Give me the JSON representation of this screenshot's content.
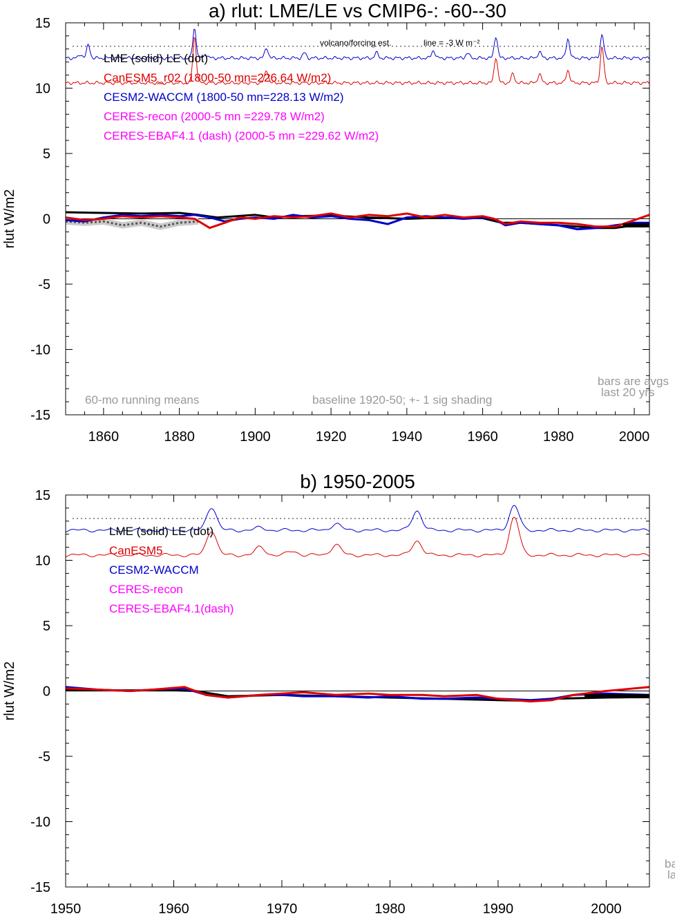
{
  "chart_data": [
    {
      "type": "line",
      "title": "a) rlut: LME/LE vs CMIP6-: -60--30",
      "ylabel": "rlut W/m2",
      "xlim": [
        1850,
        2004
      ],
      "ylim": [
        -15,
        15
      ],
      "xticks": [
        1860,
        1880,
        1900,
        1920,
        1940,
        1960,
        1980,
        2000
      ],
      "yticks": [
        15,
        10,
        5,
        0,
        -5,
        -10,
        -15
      ],
      "legend": [
        {
          "text": "LME (solid)   LE (dot)",
          "color": "#000000"
        },
        {
          "text": "CanESM5_r02 (1800-50 mn=226.64 W/m2)",
          "color": "#dd0000"
        },
        {
          "text": "CESM2-WACCM (1800-50 mn=228.13 W/m2)",
          "color": "#0000cc"
        },
        {
          "text": "CERES-recon (2000-5 mn =229.78 W/m2)",
          "color": "#ff00ff"
        },
        {
          "text": "CERES-EBAF4.1 (dash) (2000-5 mn =229.62 W/m2)",
          "color": "#ff00ff"
        }
      ],
      "annotations": {
        "volcano": "volcano/forcing est.",
        "line_ref": "line = -3 W m⁻²",
        "running": "60-mo running means",
        "baseline": "baseline 1920-50; +- 1 sig shading",
        "bars1": "bars are avgs",
        "bars2": "last 20 yrs"
      },
      "dotted_ref_y": 13.2,
      "forcing_series": [
        {
          "name": "CESM2-WACCM forcing",
          "color": "#0000cc",
          "base": 12.3,
          "peaks": [
            [
              1854,
              0.3
            ],
            [
              1856,
              1.0
            ],
            [
              1884,
              2.3
            ],
            [
              1887,
              0.3
            ],
            [
              1903,
              0.8
            ],
            [
              1913,
              0.4
            ],
            [
              1932,
              0.4
            ],
            [
              1947,
              0.6
            ],
            [
              1956,
              0.4
            ],
            [
              1963.5,
              1.7
            ],
            [
              1975,
              0.5
            ],
            [
              1982.5,
              1.5
            ],
            [
              1991.5,
              1.8
            ]
          ]
        },
        {
          "name": "CanESM5 forcing",
          "color": "#dd0000",
          "base": 10.4,
          "peaks": [
            [
              1884,
              3.6
            ],
            [
              1903,
              1.0
            ],
            [
              1963.5,
              2.0
            ],
            [
              1968,
              0.7
            ],
            [
              1975,
              0.7
            ],
            [
              1982.5,
              1.0
            ],
            [
              1991.5,
              2.8
            ]
          ]
        }
      ],
      "anomaly_series": [
        {
          "name": "LME",
          "color": "#000000",
          "x": [
            1850,
            1860,
            1870,
            1880,
            1885,
            1890,
            1895,
            1900,
            1905,
            1910,
            1920,
            1930,
            1940,
            1950,
            1960,
            1965,
            1970,
            1975,
            1980,
            1985,
            1990,
            1995,
            2000,
            2004
          ],
          "y": [
            0.5,
            0.45,
            0.4,
            0.45,
            0.3,
            0.1,
            0.2,
            0.3,
            0.1,
            0.2,
            0.25,
            0.1,
            0.0,
            0.1,
            0.05,
            -0.3,
            -0.3,
            -0.4,
            -0.5,
            -0.6,
            -0.7,
            -0.7,
            -0.5,
            -0.4
          ]
        },
        {
          "name": "LE",
          "color": "#555555",
          "dash": "3,3",
          "x": [
            1850,
            1855,
            1860,
            1865,
            1870,
            1875,
            1880,
            1885
          ],
          "y": [
            -0.2,
            -0.3,
            -0.2,
            -0.5,
            -0.3,
            -0.6,
            -0.3,
            -0.2
          ]
        },
        {
          "name": "CESM2-WACCM",
          "color": "#0000cc",
          "x": [
            1850,
            1855,
            1860,
            1865,
            1870,
            1875,
            1880,
            1884,
            1888,
            1892,
            1896,
            1900,
            1905,
            1910,
            1915,
            1920,
            1925,
            1930,
            1935,
            1940,
            1945,
            1950,
            1955,
            1960,
            1963,
            1966,
            1970,
            1975,
            1980,
            1985,
            1990,
            1995,
            2000,
            2004
          ],
          "y": [
            -0.1,
            -0.2,
            0.1,
            0.3,
            0.2,
            0.3,
            0.2,
            0.3,
            0.1,
            -0.2,
            0.0,
            0.1,
            0.0,
            0.3,
            0.1,
            0.2,
            0.0,
            -0.1,
            -0.4,
            0.1,
            0.2,
            0.1,
            0.0,
            0.1,
            0.0,
            -0.5,
            -0.3,
            -0.4,
            -0.5,
            -0.8,
            -0.7,
            -0.5,
            -0.3,
            -0.3
          ]
        },
        {
          "name": "CanESM5",
          "color": "#dd0000",
          "x": [
            1850,
            1855,
            1860,
            1865,
            1870,
            1875,
            1880,
            1884,
            1888,
            1892,
            1896,
            1900,
            1905,
            1910,
            1915,
            1920,
            1925,
            1930,
            1935,
            1940,
            1945,
            1950,
            1955,
            1960,
            1963,
            1966,
            1970,
            1975,
            1980,
            1985,
            1990,
            1995,
            2000,
            2004
          ],
          "y": [
            0.1,
            -0.1,
            0.0,
            0.2,
            0.1,
            0.2,
            0.1,
            0.0,
            -0.7,
            -0.3,
            0.1,
            0.0,
            0.2,
            0.1,
            0.2,
            0.4,
            0.1,
            0.3,
            0.2,
            0.4,
            0.1,
            0.3,
            0.1,
            0.2,
            0.0,
            -0.4,
            -0.2,
            -0.3,
            -0.3,
            -0.4,
            -0.6,
            -0.6,
            -0.1,
            0.3
          ]
        }
      ],
      "end_bar": {
        "x0": 1997,
        "x1": 2004,
        "y": -0.5,
        "color": "#000000"
      }
    },
    {
      "type": "line",
      "title": "b) 1950-2005",
      "ylabel": "rlut W/m2",
      "xlim": [
        1950,
        2004
      ],
      "ylim": [
        -15,
        15
      ],
      "xticks": [
        1950,
        1960,
        1970,
        1980,
        1990,
        2000
      ],
      "yticks": [
        15,
        10,
        5,
        0,
        -5,
        -10,
        -15
      ],
      "legend": [
        {
          "text": "LME (solid)      LE (dot)",
          "color": "#000000"
        },
        {
          "text": "CanESM5",
          "color": "#dd0000"
        },
        {
          "text": "CESM2-WACCM",
          "color": "#0000cc"
        },
        {
          "text": "CERES-recon",
          "color": "#ff00ff"
        },
        {
          "text": "CERES-EBAF4.1(dash)",
          "color": "#ff00ff"
        }
      ],
      "annotations": {
        "bars1": "ba",
        "bars2": "la"
      },
      "dotted_ref_y": 13.2,
      "forcing_series": [
        {
          "name": "CESM2-WACCM forcing",
          "color": "#0000cc",
          "base": 12.3,
          "peaks": [
            [
              1963.5,
              1.8
            ],
            [
              1968,
              0.2
            ],
            [
              1975,
              0.5
            ],
            [
              1982.5,
              1.5
            ],
            [
              1991.5,
              1.9
            ]
          ]
        },
        {
          "name": "CanESM5 forcing",
          "color": "#dd0000",
          "base": 10.4,
          "peaks": [
            [
              1963.5,
              1.9
            ],
            [
              1968,
              0.6
            ],
            [
              1971,
              0.3
            ],
            [
              1975,
              0.8
            ],
            [
              1982.5,
              1.1
            ],
            [
              1991.5,
              2.9
            ]
          ]
        }
      ],
      "anomaly_series": [
        {
          "name": "LME",
          "color": "#000000",
          "x": [
            1950,
            1955,
            1960,
            1962,
            1965,
            1970,
            1975,
            1980,
            1985,
            1990,
            1993,
            1995,
            2000,
            2004
          ],
          "y": [
            0.05,
            0.05,
            0.05,
            0.0,
            -0.4,
            -0.3,
            -0.4,
            -0.5,
            -0.6,
            -0.7,
            -0.75,
            -0.6,
            -0.5,
            -0.45
          ]
        },
        {
          "name": "CESM2-WACCM",
          "color": "#0000cc",
          "x": [
            1950,
            1953,
            1956,
            1958,
            1961,
            1963,
            1965,
            1968,
            1970,
            1972,
            1975,
            1978,
            1980,
            1983,
            1985,
            1988,
            1990,
            1993,
            1995,
            1997,
            2000,
            2004
          ],
          "y": [
            0.3,
            0.1,
            0.0,
            0.1,
            0.2,
            -0.3,
            -0.5,
            -0.3,
            -0.3,
            -0.4,
            -0.4,
            -0.5,
            -0.4,
            -0.6,
            -0.6,
            -0.5,
            -0.6,
            -0.7,
            -0.6,
            -0.3,
            -0.2,
            -0.3
          ]
        },
        {
          "name": "CanESM5",
          "color": "#dd0000",
          "x": [
            1950,
            1953,
            1956,
            1958,
            1961,
            1963,
            1965,
            1968,
            1970,
            1972,
            1975,
            1978,
            1980,
            1983,
            1985,
            1988,
            1990,
            1993,
            1995,
            1997,
            2000,
            2004
          ],
          "y": [
            0.2,
            0.1,
            0.0,
            0.1,
            0.3,
            -0.3,
            -0.5,
            -0.3,
            -0.2,
            -0.1,
            -0.3,
            -0.2,
            -0.3,
            -0.3,
            -0.4,
            -0.3,
            -0.6,
            -0.8,
            -0.7,
            -0.3,
            0.0,
            0.3
          ]
        }
      ],
      "end_bar": {
        "x0": 1998,
        "x1": 2004,
        "y": -0.4,
        "color": "#000000"
      }
    }
  ]
}
